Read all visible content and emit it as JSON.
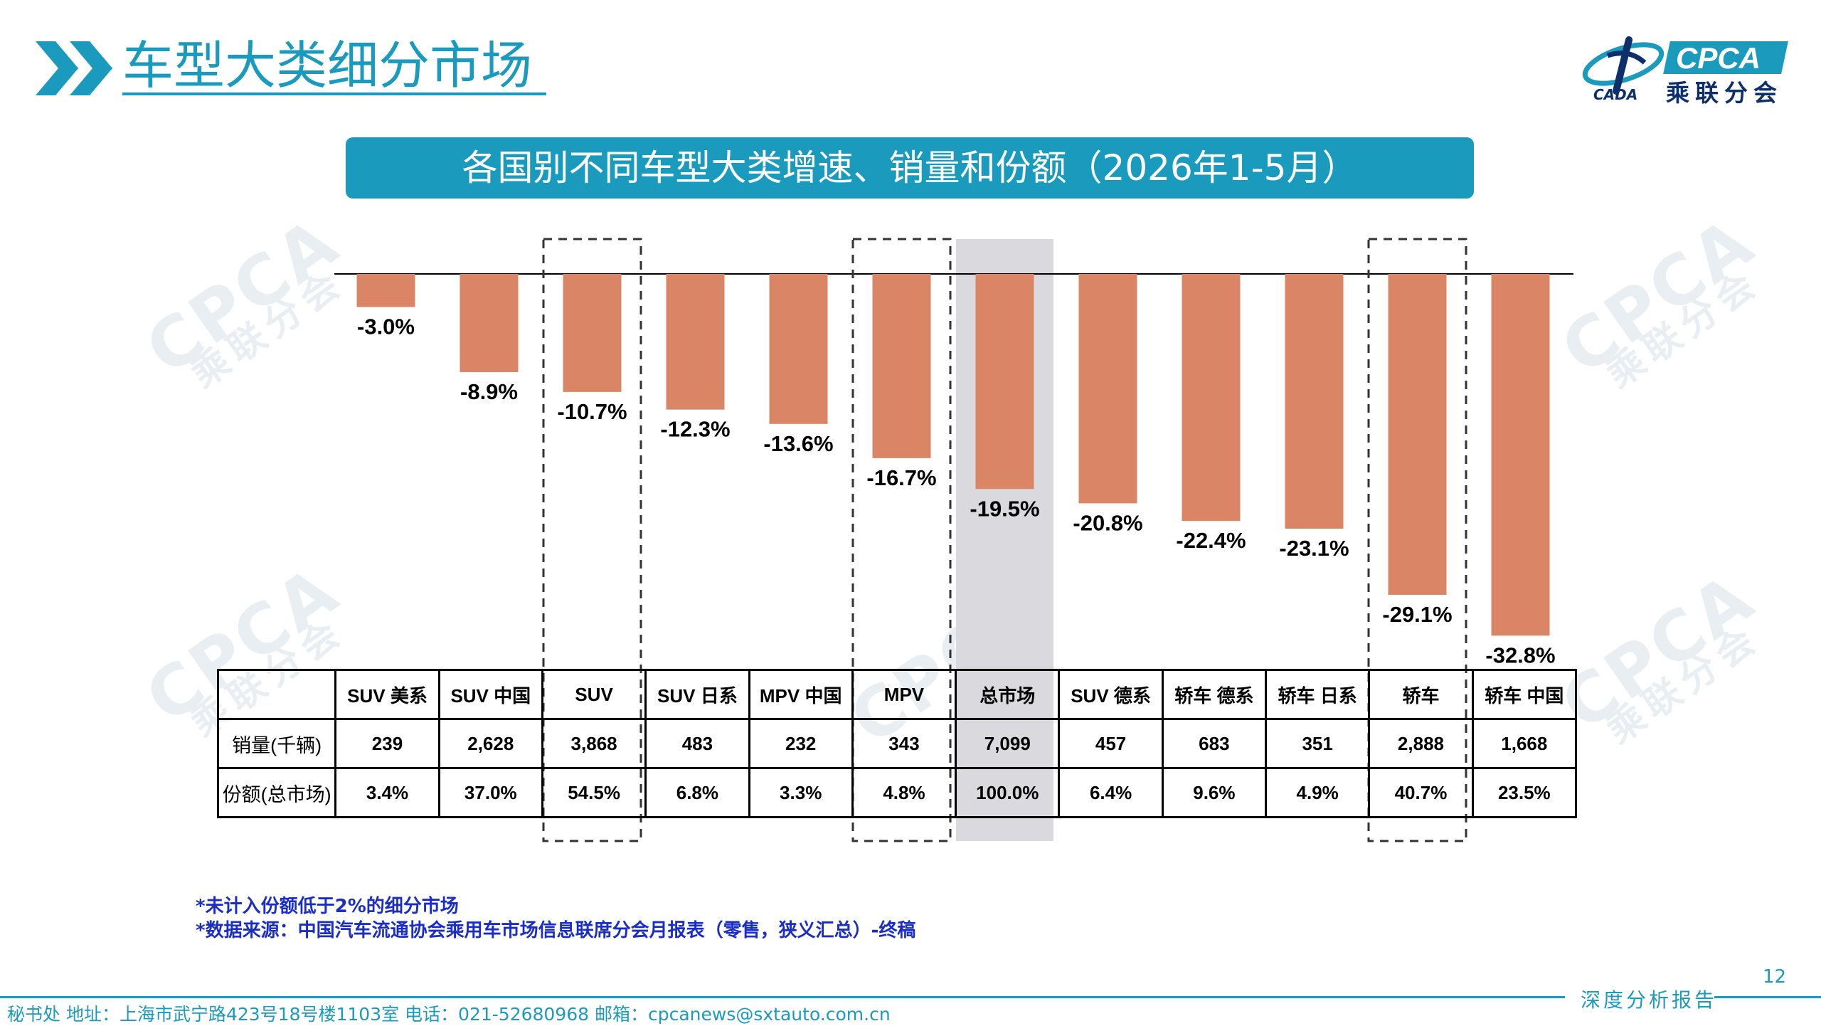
{
  "header": {
    "title": "车型大类细分市场",
    "logo_text": "CPCA",
    "logo_sub": "乘联分会",
    "logo_caption": "CADA"
  },
  "banner": {
    "text": "各国别不同车型大类增速、销量和份额（2026年1-5月）"
  },
  "watermark": {
    "text": "CPCA",
    "sub": "乘联分会"
  },
  "colors": {
    "bar": "#d98566",
    "accent": "#1a9bbd",
    "highlight": "#d9d9de",
    "note": "#1a2dc8"
  },
  "chart_data": {
    "type": "bar",
    "categories": [
      "SUV 美系",
      "SUV 中国",
      "SUV",
      "SUV 日系",
      "MPV 中国",
      "MPV",
      "总市场",
      "SUV 德系",
      "轿车 德系",
      "轿车 日系",
      "轿车",
      "轿车 中国"
    ],
    "values": [
      -3.0,
      -8.9,
      -10.7,
      -12.3,
      -13.6,
      -16.7,
      -19.5,
      -20.8,
      -22.4,
      -23.1,
      -29.1,
      -32.8
    ],
    "value_labels": [
      "-3.0%",
      "-8.9%",
      "-10.7%",
      "-12.3%",
      "-13.6%",
      "-16.7%",
      "-19.5%",
      "-20.8%",
      "-22.4%",
      "-23.1%",
      "-29.1%",
      "-32.8%"
    ],
    "ylim": [
      -35,
      0
    ],
    "dashed_highlight": [
      "SUV",
      "MPV",
      "轿车"
    ],
    "shaded_highlight": [
      "总市场"
    ],
    "grid": false
  },
  "table": {
    "row_labels": [
      "销量(千辆)",
      "份额(总市场)"
    ],
    "sales": [
      "239",
      "2,628",
      "3,868",
      "483",
      "232",
      "343",
      "7,099",
      "457",
      "683",
      "351",
      "2,888",
      "1,668"
    ],
    "share": [
      "3.4%",
      "37.0%",
      "54.5%",
      "6.8%",
      "3.3%",
      "4.8%",
      "100.0%",
      "6.4%",
      "9.6%",
      "4.9%",
      "40.7%",
      "23.5%"
    ]
  },
  "notes": [
    "*未计入份额低于2%的细分市场",
    "*数据来源：中国汽车流通协会乘用车市场信息联席分会月报表（零售，狭义汇总）-终稿"
  ],
  "footer": {
    "page_number": "12",
    "report_label": "深度分析报告",
    "contact": "秘书处   地址：上海市武宁路423号18号楼1103室  电话：021-52680968   邮箱：cpcanews@sxtauto.com.cn"
  }
}
